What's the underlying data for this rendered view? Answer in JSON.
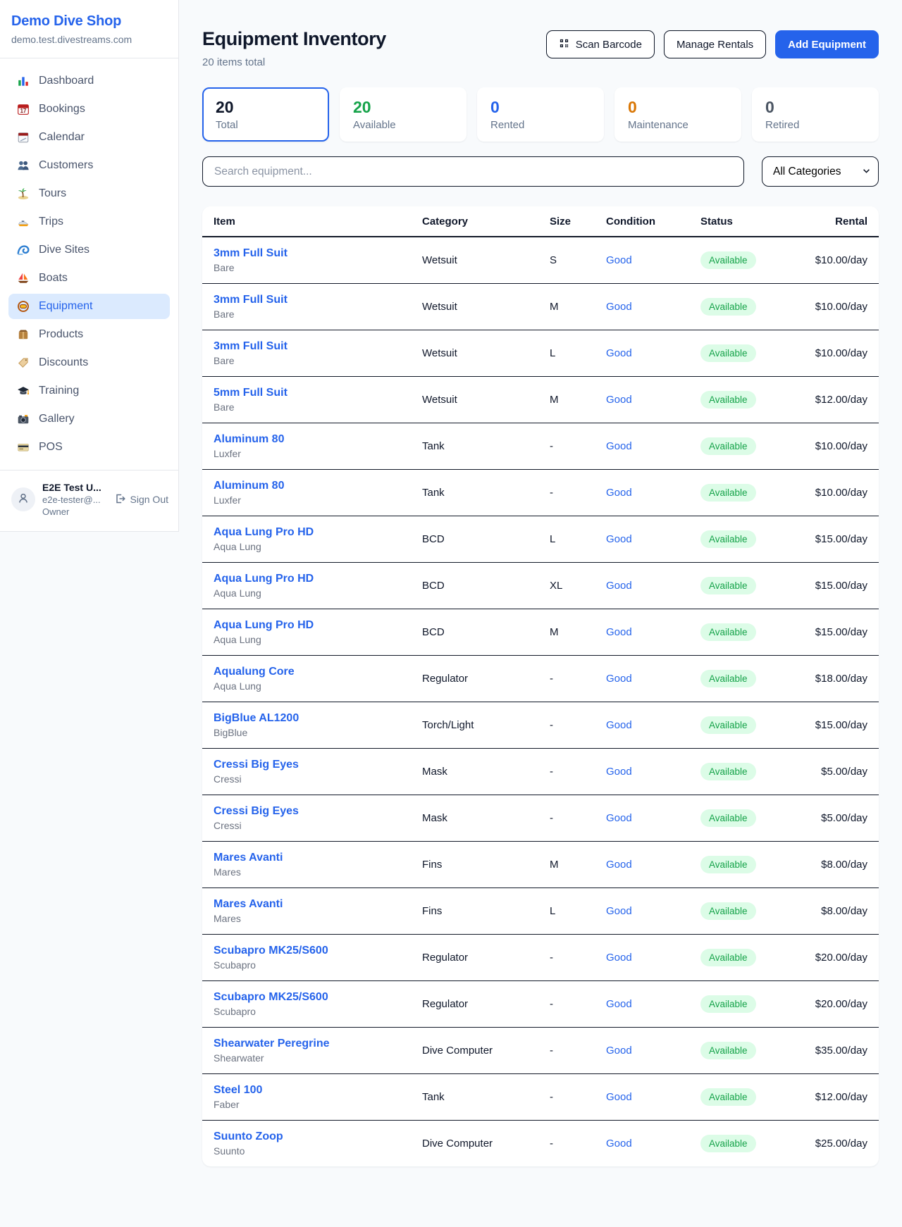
{
  "app": {
    "name": "Demo Dive Shop",
    "domain": "demo.test.divestreams.com"
  },
  "sidebar": {
    "items": [
      {
        "label": "Dashboard",
        "icon": "bar-chart-icon",
        "active": false
      },
      {
        "label": "Bookings",
        "icon": "calendar-date-icon",
        "active": false
      },
      {
        "label": "Calendar",
        "icon": "calendar-pad-icon",
        "active": false
      },
      {
        "label": "Customers",
        "icon": "users-icon",
        "active": false
      },
      {
        "label": "Tours",
        "icon": "palm-island-icon",
        "active": false
      },
      {
        "label": "Trips",
        "icon": "speedboat-icon",
        "active": false
      },
      {
        "label": "Dive Sites",
        "icon": "wave-icon",
        "active": false
      },
      {
        "label": "Boats",
        "icon": "sailboat-icon",
        "active": false
      },
      {
        "label": "Equipment",
        "icon": "dive-mask-icon",
        "active": true
      },
      {
        "label": "Products",
        "icon": "package-icon",
        "active": false
      },
      {
        "label": "Discounts",
        "icon": "tag-icon",
        "active": false
      },
      {
        "label": "Training",
        "icon": "graduation-cap-icon",
        "active": false
      },
      {
        "label": "Gallery",
        "icon": "camera-icon",
        "active": false
      },
      {
        "label": "POS",
        "icon": "credit-card-icon",
        "active": false
      }
    ],
    "user": {
      "name": "E2E Test U...",
      "email": "e2e-tester@...",
      "role": "Owner",
      "sign_out_label": "Sign Out"
    }
  },
  "header": {
    "title": "Equipment Inventory",
    "subtitle": "20 items total",
    "scan_label": "Scan Barcode",
    "manage_label": "Manage Rentals",
    "add_label": "Add Equipment"
  },
  "stats": [
    {
      "value": "20",
      "label": "Total",
      "color": "#0f172a",
      "active": true
    },
    {
      "value": "20",
      "label": "Available",
      "color": "#16a34a",
      "active": false
    },
    {
      "value": "0",
      "label": "Rented",
      "color": "#2563eb",
      "active": false
    },
    {
      "value": "0",
      "label": "Maintenance",
      "color": "#d97706",
      "active": false
    },
    {
      "value": "0",
      "label": "Retired",
      "color": "#4b5563",
      "active": false
    }
  ],
  "filters": {
    "search_placeholder": "Search equipment...",
    "category_selected": "All Categories"
  },
  "table": {
    "columns": [
      "Item",
      "Category",
      "Size",
      "Condition",
      "Status",
      "Rental"
    ],
    "rows": [
      {
        "name": "3mm Full Suit",
        "brand": "Bare",
        "category": "Wetsuit",
        "size": "S",
        "condition": "Good",
        "status": "Available",
        "rental": "$10.00/day"
      },
      {
        "name": "3mm Full Suit",
        "brand": "Bare",
        "category": "Wetsuit",
        "size": "M",
        "condition": "Good",
        "status": "Available",
        "rental": "$10.00/day"
      },
      {
        "name": "3mm Full Suit",
        "brand": "Bare",
        "category": "Wetsuit",
        "size": "L",
        "condition": "Good",
        "status": "Available",
        "rental": "$10.00/day"
      },
      {
        "name": "5mm Full Suit",
        "brand": "Bare",
        "category": "Wetsuit",
        "size": "M",
        "condition": "Good",
        "status": "Available",
        "rental": "$12.00/day"
      },
      {
        "name": "Aluminum 80",
        "brand": "Luxfer",
        "category": "Tank",
        "size": "-",
        "condition": "Good",
        "status": "Available",
        "rental": "$10.00/day"
      },
      {
        "name": "Aluminum 80",
        "brand": "Luxfer",
        "category": "Tank",
        "size": "-",
        "condition": "Good",
        "status": "Available",
        "rental": "$10.00/day"
      },
      {
        "name": "Aqua Lung Pro HD",
        "brand": "Aqua Lung",
        "category": "BCD",
        "size": "L",
        "condition": "Good",
        "status": "Available",
        "rental": "$15.00/day"
      },
      {
        "name": "Aqua Lung Pro HD",
        "brand": "Aqua Lung",
        "category": "BCD",
        "size": "XL",
        "condition": "Good",
        "status": "Available",
        "rental": "$15.00/day"
      },
      {
        "name": "Aqua Lung Pro HD",
        "brand": "Aqua Lung",
        "category": "BCD",
        "size": "M",
        "condition": "Good",
        "status": "Available",
        "rental": "$15.00/day"
      },
      {
        "name": "Aqualung Core",
        "brand": "Aqua Lung",
        "category": "Regulator",
        "size": "-",
        "condition": "Good",
        "status": "Available",
        "rental": "$18.00/day"
      },
      {
        "name": "BigBlue AL1200",
        "brand": "BigBlue",
        "category": "Torch/Light",
        "size": "-",
        "condition": "Good",
        "status": "Available",
        "rental": "$15.00/day"
      },
      {
        "name": "Cressi Big Eyes",
        "brand": "Cressi",
        "category": "Mask",
        "size": "-",
        "condition": "Good",
        "status": "Available",
        "rental": "$5.00/day"
      },
      {
        "name": "Cressi Big Eyes",
        "brand": "Cressi",
        "category": "Mask",
        "size": "-",
        "condition": "Good",
        "status": "Available",
        "rental": "$5.00/day"
      },
      {
        "name": "Mares Avanti",
        "brand": "Mares",
        "category": "Fins",
        "size": "M",
        "condition": "Good",
        "status": "Available",
        "rental": "$8.00/day"
      },
      {
        "name": "Mares Avanti",
        "brand": "Mares",
        "category": "Fins",
        "size": "L",
        "condition": "Good",
        "status": "Available",
        "rental": "$8.00/day"
      },
      {
        "name": "Scubapro MK25/S600",
        "brand": "Scubapro",
        "category": "Regulator",
        "size": "-",
        "condition": "Good",
        "status": "Available",
        "rental": "$20.00/day"
      },
      {
        "name": "Scubapro MK25/S600",
        "brand": "Scubapro",
        "category": "Regulator",
        "size": "-",
        "condition": "Good",
        "status": "Available",
        "rental": "$20.00/day"
      },
      {
        "name": "Shearwater Peregrine",
        "brand": "Shearwater",
        "category": "Dive Computer",
        "size": "-",
        "condition": "Good",
        "status": "Available",
        "rental": "$35.00/day"
      },
      {
        "name": "Steel 100",
        "brand": "Faber",
        "category": "Tank",
        "size": "-",
        "condition": "Good",
        "status": "Available",
        "rental": "$12.00/day"
      },
      {
        "name": "Suunto Zoop",
        "brand": "Suunto",
        "category": "Dive Computer",
        "size": "-",
        "condition": "Good",
        "status": "Available",
        "rental": "$25.00/day"
      }
    ]
  },
  "colors": {
    "accent": "#2563eb",
    "ink": "#0f172a",
    "muted": "#64748b",
    "available_text": "#16a34a",
    "available_bg": "#dcfce7",
    "maintenance": "#d97706",
    "retired": "#4b5563",
    "active_item_bg": "#dbeafe",
    "page_bg": "#f8fafc",
    "row_divider": "#111827"
  }
}
